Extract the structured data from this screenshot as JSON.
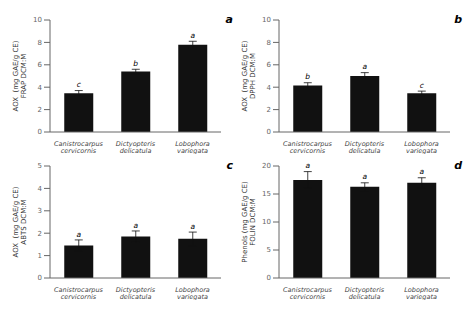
{
  "chart_data": [
    {
      "type": "bar",
      "title": "a",
      "ylabel": "AOX  (mg GAE/g CE)\nFRAP DCM:M",
      "categories": [
        "Canistrocarpus\ncervicornis",
        "Dictyopteris\ndelicatula",
        "Lobophora\nvariegata"
      ],
      "values": [
        3.45,
        5.4,
        7.8
      ],
      "errors": [
        0.25,
        0.2,
        0.3
      ],
      "annotations": [
        "c",
        "b",
        "a"
      ],
      "color": "#111111",
      "ylim": [
        0,
        10
      ],
      "yticks": [
        0,
        2,
        4,
        6,
        8,
        10
      ],
      "grid": false
    },
    {
      "type": "bar",
      "title": "b",
      "ylabel": "AOX  (mg GAE/g CE)\nDPPH DCM:M",
      "categories": [
        "Canistrocarpus\ncervicornis",
        "Dictyopteris\ndelicatula",
        "Lobophora\nvariegata"
      ],
      "values": [
        4.15,
        5.0,
        3.45
      ],
      "errors": [
        0.25,
        0.3,
        0.2
      ],
      "annotations": [
        "b",
        "a",
        "c"
      ],
      "color": "#111111",
      "ylim": [
        0,
        10
      ],
      "yticks": [
        0,
        2,
        4,
        6,
        8,
        10
      ],
      "grid": false
    },
    {
      "type": "bar",
      "title": "c",
      "ylabel": "AOX  (mg GAE/g CE)\nABTS DCM:M",
      "categories": [
        "Canistrocarpus\ncervicornis",
        "Dictyopteris\ndelicatula",
        "Lobophora\nvariegata"
      ],
      "values": [
        1.45,
        1.85,
        1.75
      ],
      "errors": [
        0.25,
        0.25,
        0.3
      ],
      "annotations": [
        "a",
        "a",
        "a"
      ],
      "color": "#111111",
      "ylim": [
        0,
        5
      ],
      "yticks": [
        0,
        1,
        2,
        3,
        4,
        5
      ],
      "grid": false
    },
    {
      "type": "bar",
      "title": "d",
      "ylabel": "Phenols (mg GAE/g CE)\nFOLIN DCM:M",
      "categories": [
        "Canistrocarpus\ncervicornis",
        "Dictyopteris\ndelicatula",
        "Lobophora\nvariegata"
      ],
      "values": [
        17.5,
        16.3,
        17.0
      ],
      "errors": [
        1.5,
        0.7,
        0.9
      ],
      "annotations": [
        "a",
        "a",
        "a"
      ],
      "color": "#111111",
      "ylim": [
        0,
        20
      ],
      "yticks": [
        0,
        5,
        10,
        15,
        20
      ],
      "grid": false
    }
  ]
}
